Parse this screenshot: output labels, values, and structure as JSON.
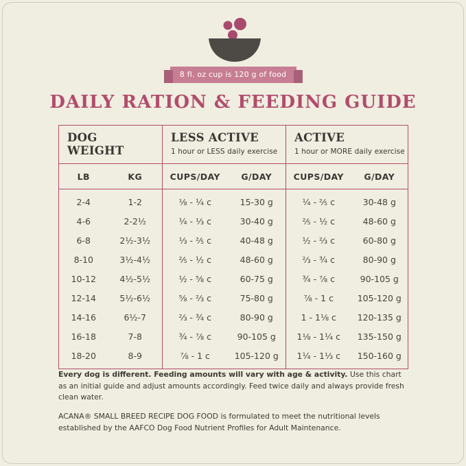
{
  "colors": {
    "background": "#efeee0",
    "accent_maroon": "#b24c6c",
    "ribbon_pink": "#c77e93",
    "ribbon_fold": "#a86078",
    "bowl_gray": "#4d4a46",
    "text_dark": "#3b3733"
  },
  "banner": {
    "text": "8 fl. oz cup is 120 g of food"
  },
  "title": "DAILY RATION & FEEDING GUIDE",
  "table": {
    "groups": [
      {
        "title": "DOG WEIGHT",
        "subtitle": ""
      },
      {
        "title": "LESS ACTIVE",
        "subtitle": "1 hour or LESS daily exercise"
      },
      {
        "title": "ACTIVE",
        "subtitle": "1 hour or MORE daily exercise"
      }
    ],
    "sub_headers": [
      "LB",
      "KG",
      "CUPS/DAY",
      "G/DAY",
      "CUPS/DAY",
      "G/DAY"
    ],
    "rows": [
      [
        "2-4",
        "1-2",
        "⅛ - ¼ c",
        "15-30 g",
        "¼ - ⅖ c",
        "30-48 g"
      ],
      [
        "4-6",
        "2-2½",
        "¼ - ⅓ c",
        "30-40 g",
        "⅖ - ½ c",
        "48-60 g"
      ],
      [
        "6-8",
        "2½-3½",
        "⅓ - ⅖ c",
        "40-48 g",
        "½ - ⅔ c",
        "60-80 g"
      ],
      [
        "8-10",
        "3½-4½",
        "⅖ - ½ c",
        "48-60 g",
        "⅔ - ¾ c",
        "80-90 g"
      ],
      [
        "10-12",
        "4½-5½",
        "½ - ⅝ c",
        "60-75 g",
        "¾ - ⅞ c",
        "90-105 g"
      ],
      [
        "12-14",
        "5½-6½",
        "⅝ - ⅔ c",
        "75-80 g",
        "⅞ - 1 c",
        "105-120 g"
      ],
      [
        "14-16",
        "6½-7",
        "⅔ - ¾ c",
        "80-90 g",
        "1 - 1⅛ c",
        "120-135 g"
      ],
      [
        "16-18",
        "7-8",
        "¾ - ⅞ c",
        "90-105 g",
        "1⅛ - 1¼ c",
        "135-150 g"
      ],
      [
        "18-20",
        "8-9",
        "⅞ - 1 c",
        "105-120 g",
        "1¼ - 1⅓ c",
        "150-160 g"
      ]
    ]
  },
  "footnotes": {
    "p1_bold": "Every dog is different. Feeding amounts will vary with age & activity.",
    "p1_rest": " Use this chart as an initial guide and adjust amounts accordingly. Feed twice daily and always provide fresh clean water.",
    "p2": "ACANA® SMALL BREED RECIPE DOG FOOD is formulated to meet the nutritional levels established by the AAFCO Dog Food Nutrient Profiles for Adult Maintenance."
  }
}
